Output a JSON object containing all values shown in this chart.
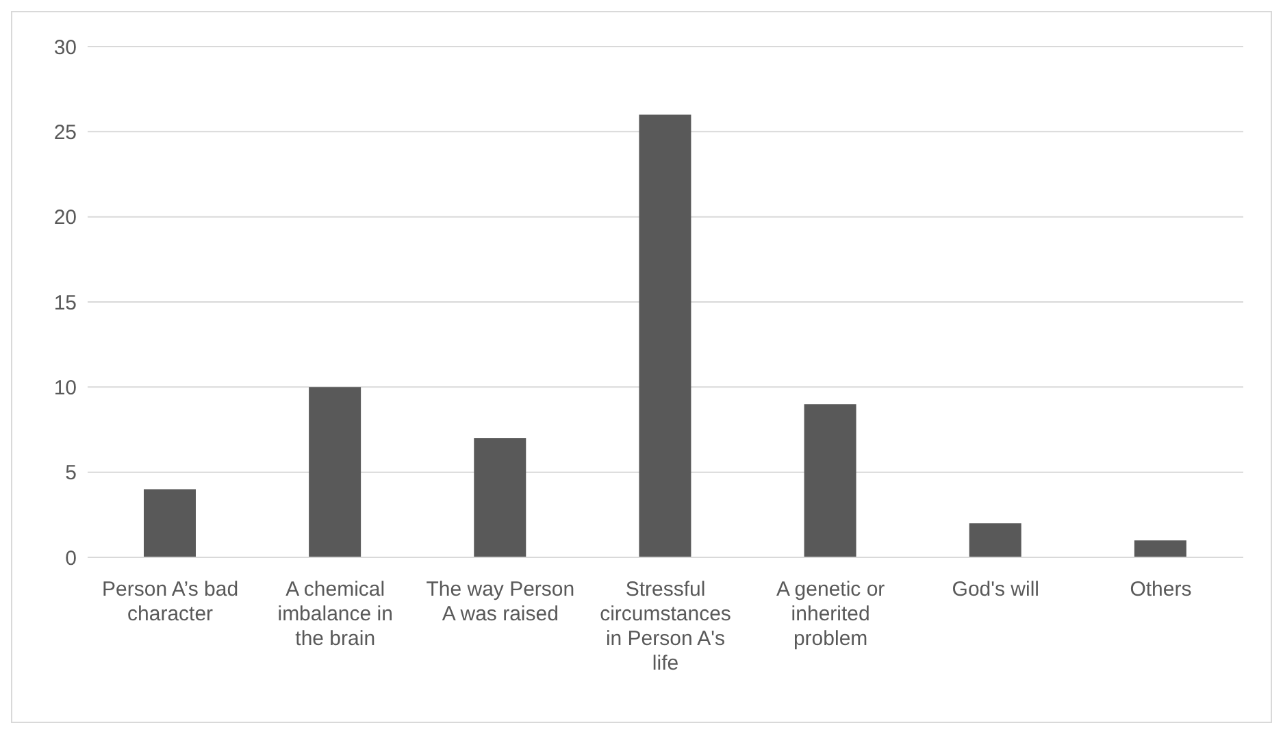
{
  "chart_data": {
    "type": "bar",
    "categories": [
      "Person A’s bad character",
      "A chemical imbalance in the brain",
      "The way Person A was raised",
      "Stressful circumstances in Person A's life",
      "A genetic or inherited problem",
      "God's will",
      "Others"
    ],
    "values": [
      4,
      10,
      7,
      26,
      9,
      2,
      1
    ],
    "color": "#595959",
    "ylim": [
      0,
      30
    ],
    "yticks": [
      0,
      5,
      10,
      15,
      20,
      25,
      30
    ],
    "grid": "y",
    "legend": false
  }
}
